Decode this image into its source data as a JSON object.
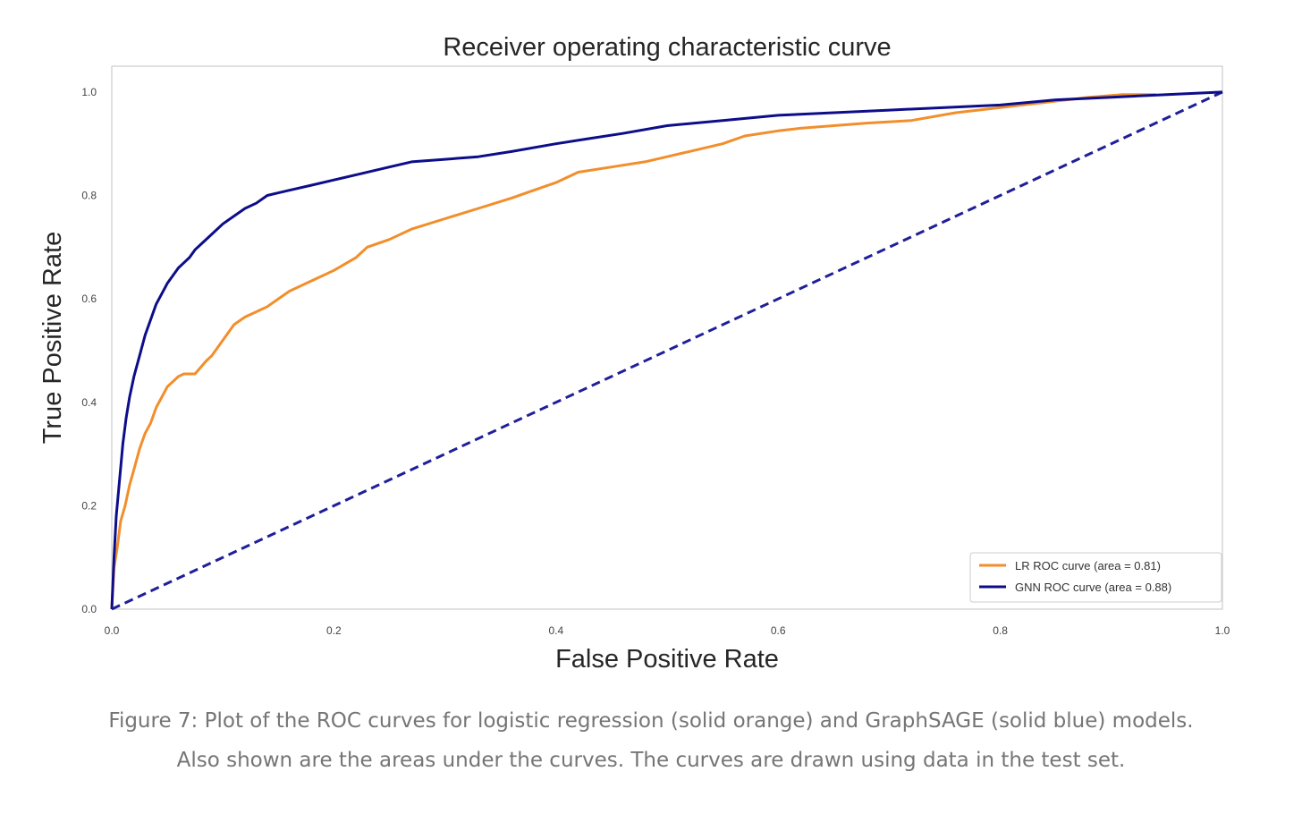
{
  "chart_data": {
    "type": "line",
    "title": "Receiver operating characteristic curve",
    "xlabel": "False Positive Rate",
    "ylabel": "True Positive Rate",
    "xlim": [
      0.0,
      1.0
    ],
    "ylim": [
      0.0,
      1.05
    ],
    "xticks": [
      "0.0",
      "0.2",
      "0.4",
      "0.6",
      "0.8",
      "1.0"
    ],
    "yticks": [
      "0.0",
      "0.2",
      "0.4",
      "0.6",
      "0.8",
      "1.0"
    ],
    "grid": false,
    "legend_position": "lower right",
    "series": [
      {
        "name": "LR ROC curve (area = 0.81)",
        "color": "#f28e2b",
        "style": "solid",
        "x": [
          0.0,
          0.002,
          0.005,
          0.008,
          0.012,
          0.016,
          0.02,
          0.025,
          0.03,
          0.035,
          0.04,
          0.045,
          0.05,
          0.055,
          0.06,
          0.065,
          0.075,
          0.085,
          0.09,
          0.1,
          0.11,
          0.12,
          0.13,
          0.14,
          0.15,
          0.16,
          0.17,
          0.18,
          0.2,
          0.22,
          0.23,
          0.25,
          0.27,
          0.3,
          0.33,
          0.36,
          0.38,
          0.4,
          0.42,
          0.45,
          0.48,
          0.5,
          0.52,
          0.55,
          0.57,
          0.6,
          0.62,
          0.65,
          0.68,
          0.72,
          0.76,
          0.8,
          0.84,
          0.88,
          0.91,
          0.94
        ],
        "y": [
          0.0,
          0.08,
          0.12,
          0.17,
          0.2,
          0.24,
          0.27,
          0.31,
          0.34,
          0.36,
          0.39,
          0.41,
          0.43,
          0.44,
          0.45,
          0.455,
          0.455,
          0.48,
          0.49,
          0.52,
          0.55,
          0.565,
          0.575,
          0.585,
          0.6,
          0.615,
          0.625,
          0.635,
          0.655,
          0.68,
          0.7,
          0.715,
          0.735,
          0.755,
          0.775,
          0.795,
          0.81,
          0.825,
          0.845,
          0.855,
          0.865,
          0.875,
          0.885,
          0.9,
          0.915,
          0.925,
          0.93,
          0.935,
          0.94,
          0.945,
          0.96,
          0.97,
          0.98,
          0.99,
          0.995,
          0.995
        ]
      },
      {
        "name": "GNN ROC curve (area = 0.88)",
        "color": "#0d0d8a",
        "style": "solid",
        "x": [
          0.0,
          0.002,
          0.004,
          0.007,
          0.01,
          0.013,
          0.016,
          0.02,
          0.025,
          0.03,
          0.035,
          0.04,
          0.045,
          0.05,
          0.055,
          0.06,
          0.065,
          0.07,
          0.075,
          0.08,
          0.09,
          0.1,
          0.11,
          0.12,
          0.13,
          0.14,
          0.15,
          0.16,
          0.18,
          0.2,
          0.22,
          0.25,
          0.27,
          0.3,
          0.33,
          0.36,
          0.4,
          0.43,
          0.46,
          0.5,
          0.55,
          0.6,
          0.65,
          0.7,
          0.75,
          0.8,
          0.85,
          0.9,
          0.95,
          1.0
        ],
        "y": [
          0.0,
          0.1,
          0.18,
          0.25,
          0.32,
          0.37,
          0.41,
          0.45,
          0.49,
          0.53,
          0.56,
          0.59,
          0.61,
          0.63,
          0.645,
          0.66,
          0.67,
          0.68,
          0.695,
          0.705,
          0.725,
          0.745,
          0.76,
          0.775,
          0.785,
          0.8,
          0.805,
          0.81,
          0.82,
          0.83,
          0.84,
          0.855,
          0.865,
          0.87,
          0.875,
          0.885,
          0.9,
          0.91,
          0.92,
          0.935,
          0.945,
          0.955,
          0.96,
          0.965,
          0.97,
          0.975,
          0.985,
          0.99,
          0.995,
          1.0
        ]
      },
      {
        "name": "",
        "color": "#1f1f99",
        "style": "dashed",
        "x": [
          0.0,
          1.0
        ],
        "y": [
          0.0,
          1.0
        ]
      }
    ]
  },
  "caption": {
    "line1": "Figure 7: Plot of the ROC curves for logistic regression (solid orange) and GraphSAGE (solid blue) models.",
    "line2": "Also shown are the areas under the curves. The curves are drawn using data in the test set."
  }
}
